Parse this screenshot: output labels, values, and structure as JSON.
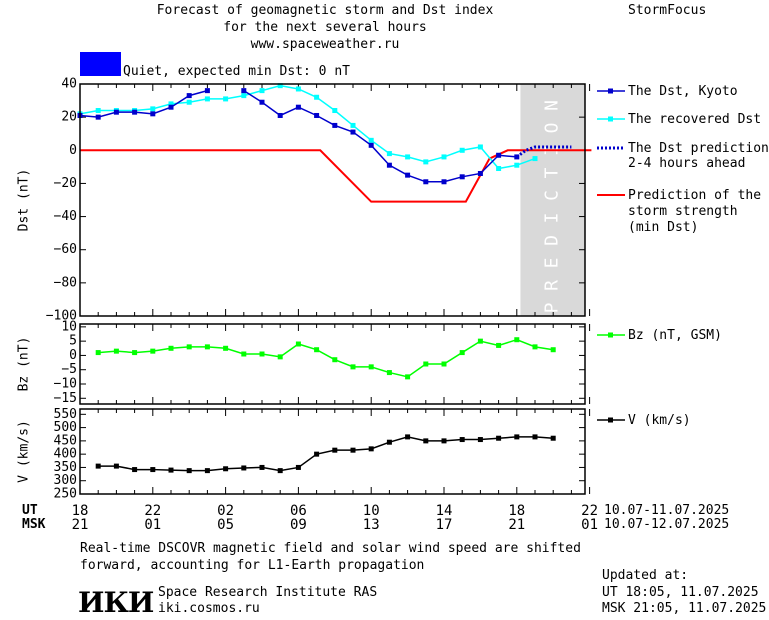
{
  "header": {
    "title_lines": [
      "Forecast of geomagnetic storm and Dst index",
      "for the next several hours",
      "www.spaceweather.ru"
    ],
    "brand": "StormFocus"
  },
  "status": {
    "quiet_label": "Quiet, expected min Dst: 0 nT",
    "quiet_color": "#0000ff"
  },
  "prediction_label": "PREDICTION",
  "legend": {
    "dst_kyoto": "The Dst, Kyoto",
    "dst_recovered": "The recovered Dst",
    "dst_prediction": [
      "The Dst prediction",
      "2-4 hours ahead"
    ],
    "storm_strength": [
      "Prediction of the",
      "storm strength",
      "(min Dst)"
    ],
    "bz": "Bz (nT, GSM)",
    "v": "V (km/s)"
  },
  "time_axis": {
    "ut_label": "UT",
    "msk_label": "MSK",
    "ut_ticks": [
      "18",
      "22",
      "02",
      "06",
      "10",
      "14",
      "18",
      "22"
    ],
    "msk_ticks": [
      "21",
      "01",
      "05",
      "09",
      "13",
      "17",
      "21",
      "01"
    ],
    "ut_range": "10.07-11.07.2025",
    "msk_range": "10.07-12.07.2025"
  },
  "footer": {
    "note_lines": [
      "Real-time DSCOVR magnetic field and solar wind speed are shifted",
      "forward, accounting for L1-Earth propagation"
    ],
    "institute": "Space Research Institute RAS",
    "url": "iki.cosmos.ru",
    "logo_text": "ИКИ",
    "updated_label": "Updated at:",
    "updated_ut": "UT   18:05, 11.07.2025",
    "updated_msk": "MSK 21:05, 11.07.2025"
  },
  "colors": {
    "dst_kyoto": "#0000cc",
    "dst_recovered": "#00ffff",
    "prediction_dotted": "#0000cc",
    "storm_strength": "#ff0000",
    "bz": "#00ff00",
    "v": "#000000",
    "prediction_zone": "#d9d9d9"
  },
  "chart_data": [
    {
      "type": "line",
      "ylabel": "Dst (nT)",
      "ylim": [
        -100,
        40
      ],
      "yticks": [
        40,
        20,
        0,
        -20,
        -40,
        -60,
        -80,
        -100
      ],
      "x_unit": "hours (UT tick 18 = 0)",
      "prediction_zone_x": [
        24.2,
        28.1
      ],
      "series": [
        {
          "name": "The Dst, Kyoto",
          "x": [
            0,
            1,
            2,
            3,
            4,
            5,
            6,
            7,
            8,
            null,
            9,
            10,
            11,
            12,
            13,
            14,
            15,
            16,
            17,
            18,
            19,
            20,
            21,
            22,
            23,
            24
          ],
          "y": [
            21,
            20,
            23,
            23,
            22,
            26,
            33,
            36,
            null,
            null,
            36,
            29,
            21,
            26,
            21,
            15,
            11,
            3,
            -9,
            -15,
            -19,
            -19,
            -16,
            -14,
            -3,
            -4
          ]
        },
        {
          "name": "The recovered Dst",
          "x": [
            0,
            1,
            2,
            3,
            4,
            5,
            6,
            7,
            8,
            9,
            10,
            11,
            12,
            13,
            14,
            15,
            16,
            17,
            18,
            19,
            20,
            21,
            22,
            23,
            24,
            25
          ],
          "y": [
            22,
            24,
            24,
            24,
            25,
            28,
            29,
            31,
            31,
            33,
            36,
            39,
            37,
            32,
            24,
            15,
            6,
            -2,
            -4,
            -7,
            -4,
            0,
            2,
            -11,
            -9,
            -5
          ]
        },
        {
          "name": "The Dst prediction 2-4 hours ahead",
          "style": "dotted",
          "x": [
            24,
            24.5,
            25,
            26,
            27
          ],
          "y": [
            -4,
            0,
            2,
            2,
            2
          ]
        },
        {
          "name": "Prediction of the storm strength (min Dst)",
          "x": [
            0,
            13.2,
            16,
            21.2,
            22.5,
            23.5,
            28.1
          ],
          "y": [
            0,
            0,
            -31,
            -31,
            -5,
            0,
            0
          ]
        }
      ]
    },
    {
      "type": "line",
      "ylabel": "Bz (nT)",
      "ylim": [
        -17,
        11
      ],
      "yticks": [
        10,
        5,
        0,
        -5,
        -10,
        -15
      ],
      "series": [
        {
          "name": "Bz (nT, GSM)",
          "x": [
            1,
            2,
            3,
            4,
            5,
            6,
            7,
            8,
            9,
            10,
            11,
            12,
            13,
            14,
            15,
            16,
            17,
            18,
            19,
            20,
            21,
            22,
            23,
            24,
            25,
            26
          ],
          "y": [
            1,
            1.5,
            1,
            1.5,
            2.5,
            3,
            3,
            2.5,
            0.5,
            0.5,
            -0.5,
            4,
            2,
            -1.5,
            -4,
            -4,
            -6,
            -7.5,
            -3,
            -3,
            1,
            5,
            3.5,
            5.5,
            3,
            2
          ]
        }
      ]
    },
    {
      "type": "line",
      "ylabel": "V (km/s)",
      "ylim": [
        250,
        570
      ],
      "yticks": [
        550,
        500,
        450,
        400,
        350,
        300,
        250
      ],
      "series": [
        {
          "name": "V (km/s)",
          "x": [
            1,
            2,
            3,
            4,
            5,
            6,
            7,
            8,
            9,
            10,
            11,
            12,
            13,
            14,
            15,
            16,
            17,
            18,
            19,
            20,
            21,
            22,
            23,
            24,
            25,
            26
          ],
          "y": [
            355,
            355,
            342,
            342,
            340,
            338,
            338,
            345,
            348,
            350,
            338,
            350,
            400,
            415,
            415,
            420,
            445,
            465,
            450,
            450,
            455,
            455,
            460,
            465,
            465,
            460
          ]
        }
      ]
    }
  ]
}
